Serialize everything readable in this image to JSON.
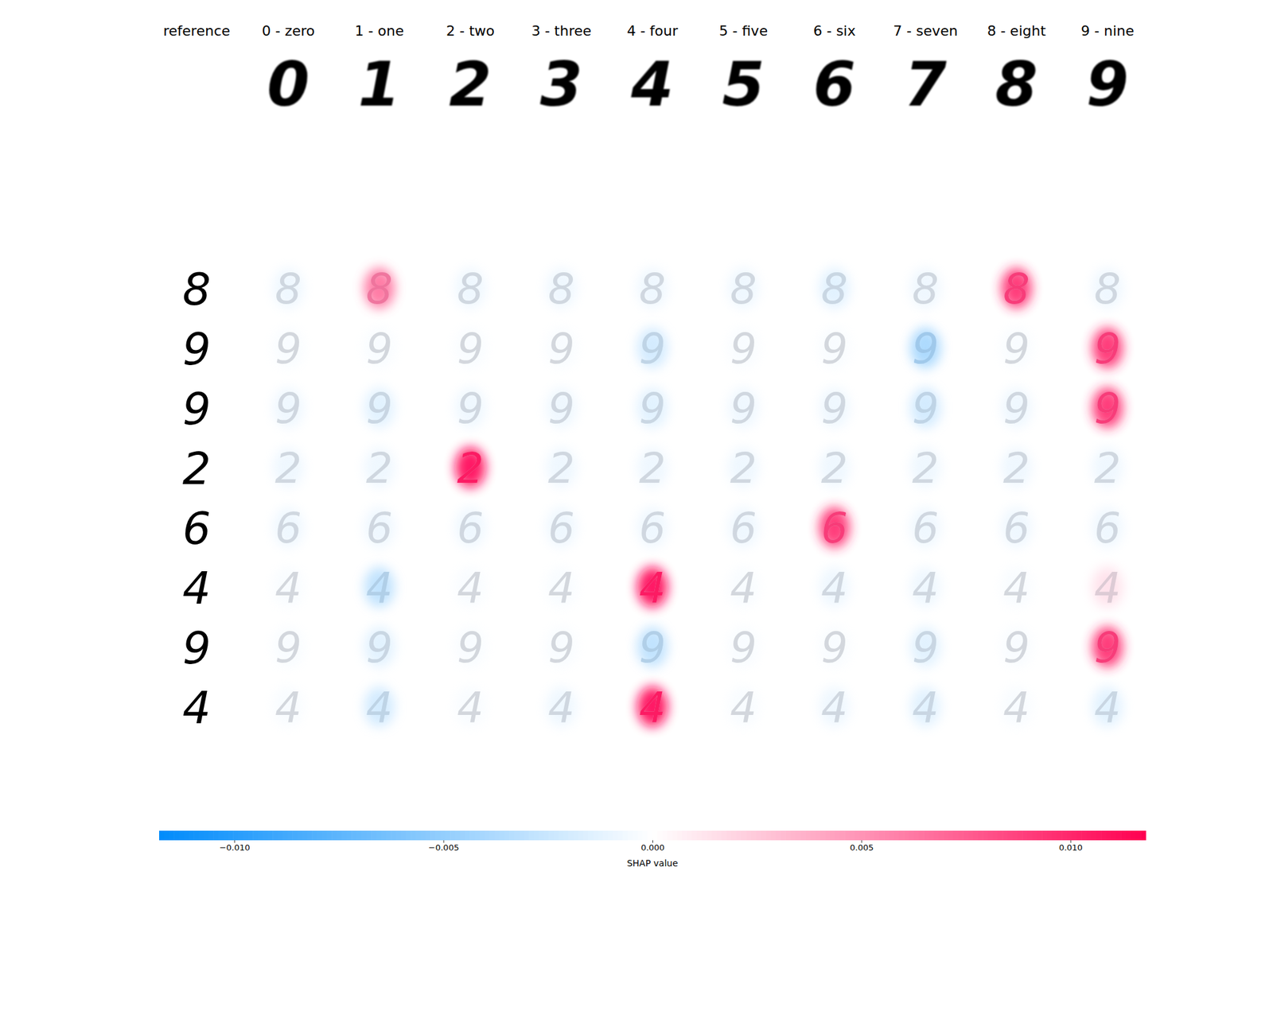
{
  "chart_data": {
    "type": "shap_image",
    "header": "reference",
    "columns": [
      {
        "label": "0 - zero",
        "digit": "0"
      },
      {
        "label": "1 - one",
        "digit": "1"
      },
      {
        "label": "2 - two",
        "digit": "2"
      },
      {
        "label": "3 - three",
        "digit": "3"
      },
      {
        "label": "4 - four",
        "digit": "4"
      },
      {
        "label": "5 - five",
        "digit": "5"
      },
      {
        "label": "6 - six",
        "digit": "6"
      },
      {
        "label": "7 - seven",
        "digit": "7"
      },
      {
        "label": "8 - eight",
        "digit": "8"
      },
      {
        "label": "9 - nine",
        "digit": "9"
      }
    ],
    "rows": [
      {
        "digit": "8",
        "shap": [
          -0.002,
          0.008,
          -0.002,
          -0.002,
          -0.002,
          -0.002,
          -0.003,
          -0.002,
          0.01,
          -0.002
        ]
      },
      {
        "digit": "9",
        "shap": [
          -0.001,
          -0.001,
          -0.001,
          -0.001,
          -0.004,
          -0.001,
          -0.001,
          -0.006,
          -0.001,
          0.01
        ]
      },
      {
        "digit": "9",
        "shap": [
          -0.002,
          -0.003,
          -0.002,
          -0.002,
          -0.003,
          -0.002,
          -0.002,
          -0.004,
          -0.002,
          0.01
        ]
      },
      {
        "digit": "2",
        "shap": [
          -0.002,
          -0.002,
          0.011,
          -0.002,
          -0.002,
          -0.002,
          -0.002,
          -0.002,
          -0.002,
          -0.002
        ]
      },
      {
        "digit": "6",
        "shap": [
          -0.002,
          -0.002,
          -0.002,
          -0.002,
          -0.002,
          -0.002,
          0.01,
          -0.002,
          -0.002,
          -0.002
        ]
      },
      {
        "digit": "4",
        "shap": [
          -0.001,
          -0.005,
          -0.001,
          -0.001,
          0.011,
          -0.001,
          -0.002,
          -0.002,
          -0.001,
          0.003
        ]
      },
      {
        "digit": "9",
        "shap": [
          -0.001,
          -0.003,
          -0.001,
          -0.001,
          -0.005,
          -0.001,
          -0.001,
          -0.003,
          -0.001,
          0.01
        ]
      },
      {
        "digit": "4",
        "shap": [
          -0.001,
          -0.004,
          -0.001,
          -0.002,
          0.011,
          -0.001,
          -0.002,
          -0.003,
          -0.001,
          -0.003
        ]
      }
    ],
    "colorbar": {
      "label": "SHAP value",
      "range": [
        -0.0118,
        0.0118
      ],
      "ticks": [
        {
          "value": -0.01,
          "label": "−0.010"
        },
        {
          "value": -0.005,
          "label": "−0.005"
        },
        {
          "value": 0,
          "label": "0.000"
        },
        {
          "value": 0.005,
          "label": "0.005"
        },
        {
          "value": 0.01,
          "label": "0.010"
        }
      ]
    }
  }
}
